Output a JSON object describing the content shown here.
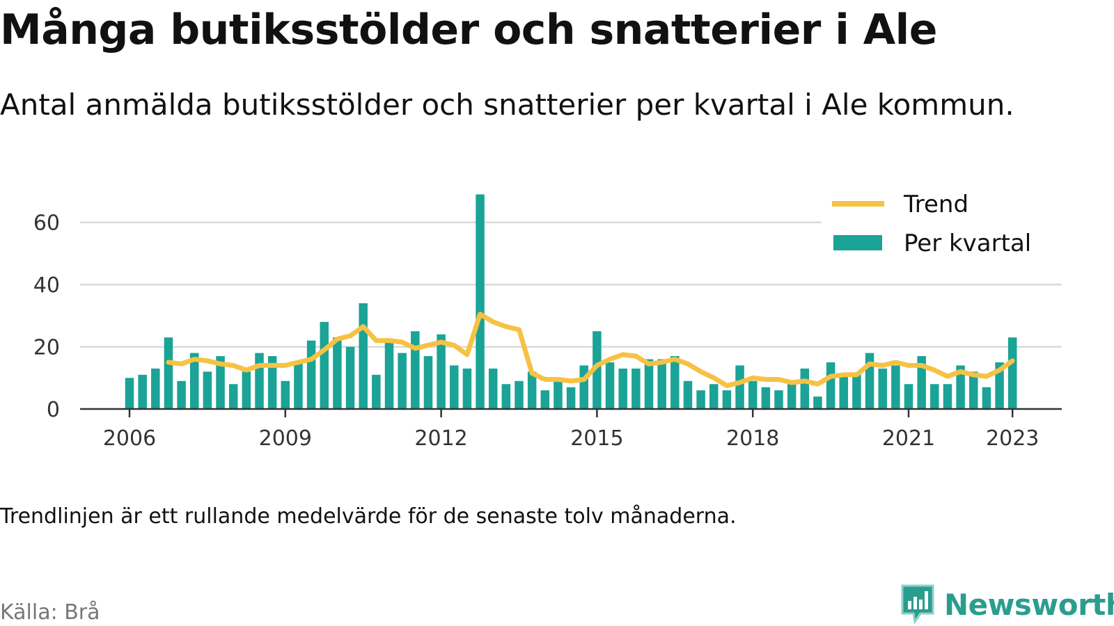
{
  "title": "Många butiksstölder och snatterier i Ale",
  "subtitle": "Antal anmälda butiksstölder och snatterier per kvartal i Ale kommun.",
  "footnote": "Trendlinjen är ett rullande medelvärde för de senaste tolv månaderna.",
  "source": "Källa: Brå",
  "brand": "Newsworthy",
  "chart_data": {
    "type": "bar",
    "start": "2006 Q1",
    "frequency": "quarterly",
    "x_ticks": [
      "2006",
      "2009",
      "2012",
      "2015",
      "2018",
      "2021",
      "2023"
    ],
    "ylim": [
      0,
      70
    ],
    "y_ticks": [
      0,
      20,
      40,
      60
    ],
    "grid": true,
    "legend_position": "top-right",
    "colors": {
      "bars": "#1aa396",
      "trend": "#f6c244",
      "grid": "#d9d9d9",
      "axis": "#333333"
    },
    "series": [
      {
        "name": "Per kvartal",
        "type": "bar",
        "values": [
          10,
          11,
          13,
          23,
          9,
          18,
          12,
          17,
          8,
          12,
          18,
          17,
          9,
          15,
          22,
          28,
          23,
          20,
          34,
          11,
          22,
          18,
          25,
          17,
          24,
          14,
          13,
          69,
          13,
          8,
          9,
          12,
          6,
          9,
          7,
          14,
          25,
          15,
          13,
          13,
          16,
          16,
          17,
          9,
          6,
          8,
          6,
          14,
          9,
          7,
          6,
          8,
          13,
          4,
          15,
          11,
          11,
          18,
          13,
          14,
          8,
          17,
          8,
          8,
          14,
          12,
          7,
          15,
          23
        ]
      },
      {
        "name": "Trend",
        "type": "line",
        "values": [
          null,
          null,
          null,
          15,
          14.5,
          16,
          15.5,
          14.5,
          14,
          12.5,
          14,
          14,
          14,
          15,
          16,
          19,
          22.5,
          23.5,
          26.5,
          22,
          22,
          21.5,
          19.5,
          20.5,
          21.5,
          20.5,
          17.5,
          30.5,
          28,
          26.5,
          25.5,
          11.5,
          9.5,
          9.5,
          9,
          9.5,
          14,
          16,
          17.5,
          17,
          14.5,
          15,
          16,
          14.5,
          12,
          10,
          7.5,
          8.5,
          10,
          9.5,
          9.5,
          8.5,
          9,
          8,
          10.5,
          11,
          11,
          14.5,
          14,
          15,
          14,
          14,
          12.5,
          10.5,
          12,
          11,
          10.5,
          12.5,
          15.5
        ]
      }
    ]
  }
}
